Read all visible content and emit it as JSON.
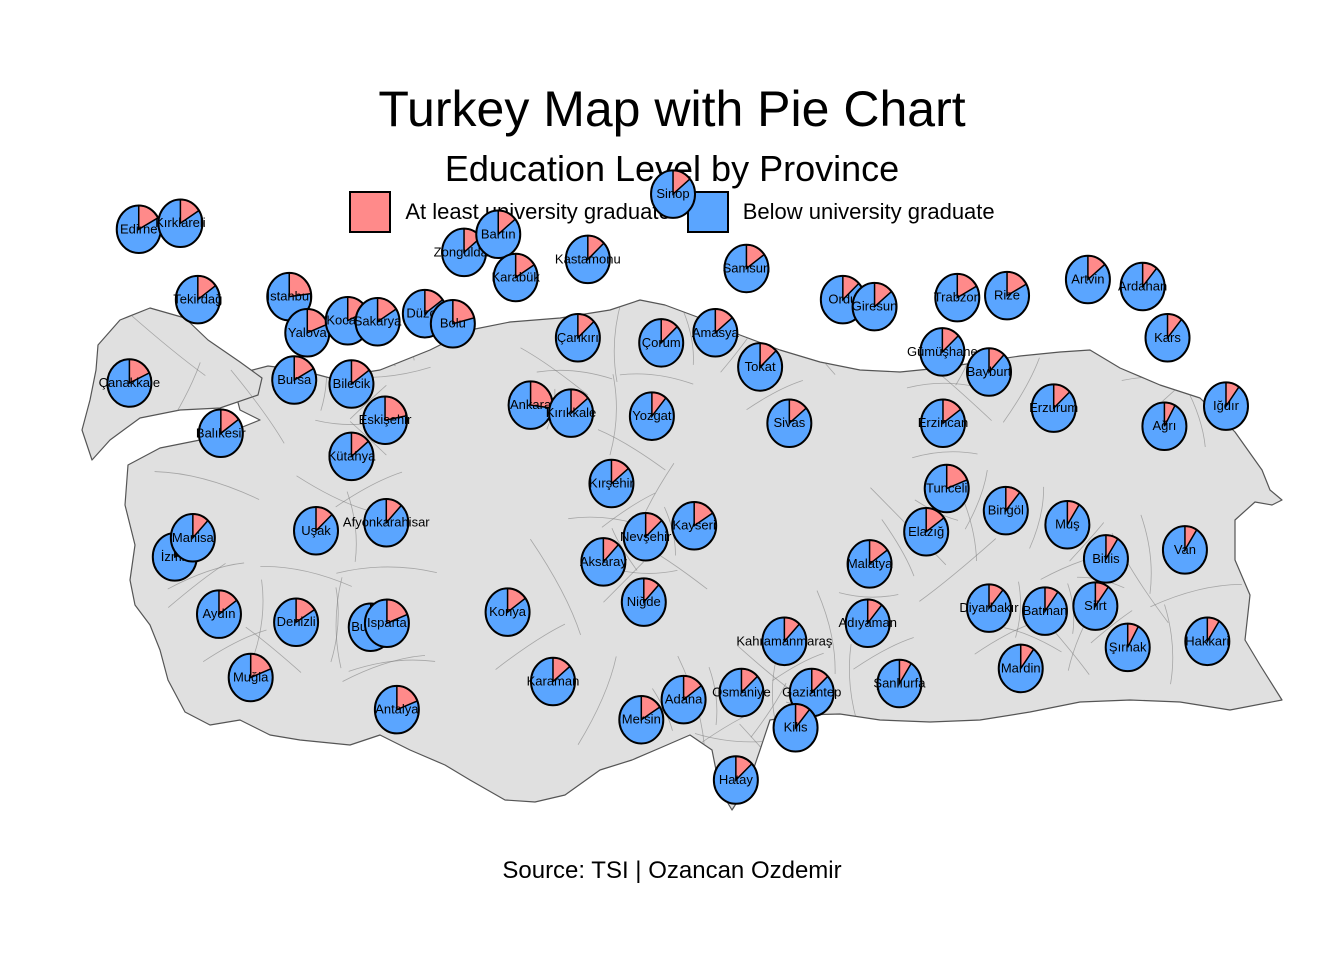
{
  "title": "Turkey Map with Pie Chart",
  "subtitle": "Education Level by Province",
  "caption": "Source: TSI | Ozancan Ozdemir",
  "colors": {
    "university": "#ff8a8a",
    "below": "#5aa5ff",
    "land": "#e0e0e0",
    "border": "#555555"
  },
  "legend": [
    {
      "label": "At least university graduate",
      "color": "#ff8a8a"
    },
    {
      "label": "Below university graduate",
      "color": "#5aa5ff"
    }
  ],
  "chart_data": {
    "type": "map-pie",
    "categories": [
      "At least university graduate",
      "Below university graduate"
    ],
    "provinces": [
      {
        "name": "Edirne",
        "lon": 26.56,
        "lat": 41.68,
        "university_share": 0.17
      },
      {
        "name": "Kırklareli",
        "lon": 27.23,
        "lat": 41.74,
        "university_share": 0.16
      },
      {
        "name": "Tekirdağ",
        "lon": 27.51,
        "lat": 40.98,
        "university_share": 0.15
      },
      {
        "name": "İstanbul",
        "lon": 28.98,
        "lat": 41.01,
        "university_share": 0.23
      },
      {
        "name": "Çanakkale",
        "lon": 26.41,
        "lat": 40.15,
        "university_share": 0.18
      },
      {
        "name": "Balıkesir",
        "lon": 27.88,
        "lat": 39.65,
        "university_share": 0.15
      },
      {
        "name": "Bursa",
        "lon": 29.06,
        "lat": 40.18,
        "university_share": 0.17
      },
      {
        "name": "Yalova",
        "lon": 29.27,
        "lat": 40.65,
        "university_share": 0.19
      },
      {
        "name": "Kocaeli",
        "lon": 29.92,
        "lat": 40.77,
        "university_share": 0.18
      },
      {
        "name": "Sakarya",
        "lon": 30.4,
        "lat": 40.76,
        "university_share": 0.16
      },
      {
        "name": "Düzce",
        "lon": 31.16,
        "lat": 40.84,
        "university_share": 0.15
      },
      {
        "name": "Bolu",
        "lon": 31.61,
        "lat": 40.74,
        "university_share": 0.21
      },
      {
        "name": "Zonguldak",
        "lon": 31.79,
        "lat": 41.45,
        "university_share": 0.14
      },
      {
        "name": "Bartın",
        "lon": 32.34,
        "lat": 41.63,
        "university_share": 0.14
      },
      {
        "name": "Karabük",
        "lon": 32.62,
        "lat": 41.2,
        "university_share": 0.16
      },
      {
        "name": "Kastamonu",
        "lon": 33.78,
        "lat": 41.38,
        "university_share": 0.13
      },
      {
        "name": "Sinop",
        "lon": 35.15,
        "lat": 42.03,
        "university_share": 0.14
      },
      {
        "name": "Çankırı",
        "lon": 33.62,
        "lat": 40.6,
        "university_share": 0.13
      },
      {
        "name": "Bilecik",
        "lon": 29.98,
        "lat": 40.14,
        "university_share": 0.15
      },
      {
        "name": "Eskişehir",
        "lon": 30.52,
        "lat": 39.78,
        "university_share": 0.22
      },
      {
        "name": "Kütahya",
        "lon": 29.98,
        "lat": 39.42,
        "university_share": 0.14
      },
      {
        "name": "Ankara",
        "lon": 32.86,
        "lat": 39.93,
        "university_share": 0.27
      },
      {
        "name": "Kırıkkale",
        "lon": 33.51,
        "lat": 39.85,
        "university_share": 0.14
      },
      {
        "name": "Çorum",
        "lon": 34.96,
        "lat": 40.55,
        "university_share": 0.13
      },
      {
        "name": "Yozgat",
        "lon": 34.81,
        "lat": 39.82,
        "university_share": 0.11
      },
      {
        "name": "Amasya",
        "lon": 35.83,
        "lat": 40.65,
        "university_share": 0.14
      },
      {
        "name": "Samsun",
        "lon": 36.33,
        "lat": 41.29,
        "university_share": 0.15
      },
      {
        "name": "Tokat",
        "lon": 36.55,
        "lat": 40.31,
        "university_share": 0.13
      },
      {
        "name": "Sivas",
        "lon": 37.02,
        "lat": 39.75,
        "university_share": 0.14
      },
      {
        "name": "Ordu",
        "lon": 37.88,
        "lat": 40.98,
        "university_share": 0.13
      },
      {
        "name": "Giresun",
        "lon": 38.39,
        "lat": 40.91,
        "university_share": 0.14
      },
      {
        "name": "Trabzon",
        "lon": 39.72,
        "lat": 41.0,
        "university_share": 0.17
      },
      {
        "name": "Rize",
        "lon": 40.52,
        "lat": 41.02,
        "university_share": 0.17
      },
      {
        "name": "Artvin",
        "lon": 41.82,
        "lat": 41.18,
        "university_share": 0.14
      },
      {
        "name": "Ardahan",
        "lon": 42.7,
        "lat": 41.11,
        "university_share": 0.11
      },
      {
        "name": "Gümüşhane",
        "lon": 39.48,
        "lat": 40.46,
        "university_share": 0.13
      },
      {
        "name": "Bayburt",
        "lon": 40.23,
        "lat": 40.26,
        "university_share": 0.12
      },
      {
        "name": "Erzincan",
        "lon": 39.49,
        "lat": 39.75,
        "university_share": 0.15
      },
      {
        "name": "Erzurum",
        "lon": 41.27,
        "lat": 39.9,
        "university_share": 0.13
      },
      {
        "name": "Kars",
        "lon": 43.1,
        "lat": 40.6,
        "university_share": 0.11
      },
      {
        "name": "Ağrı",
        "lon": 43.05,
        "lat": 39.72,
        "university_share": 0.08
      },
      {
        "name": "Iğdır",
        "lon": 44.04,
        "lat": 39.92,
        "university_share": 0.1
      },
      {
        "name": "İzmir",
        "lon": 27.14,
        "lat": 38.42,
        "university_share": 0.2
      },
      {
        "name": "Manisa",
        "lon": 27.43,
        "lat": 38.61,
        "university_share": 0.12
      },
      {
        "name": "Uşak",
        "lon": 29.41,
        "lat": 38.68,
        "university_share": 0.13
      },
      {
        "name": "Afyonkarahisar",
        "lon": 30.54,
        "lat": 38.76,
        "university_share": 0.12
      },
      {
        "name": "Aydın",
        "lon": 27.85,
        "lat": 37.85,
        "university_share": 0.15
      },
      {
        "name": "Denizli",
        "lon": 29.09,
        "lat": 37.77,
        "university_share": 0.16
      },
      {
        "name": "Muğla",
        "lon": 28.36,
        "lat": 37.22,
        "university_share": 0.19
      },
      {
        "name": "Burdur",
        "lon": 30.29,
        "lat": 37.72,
        "university_share": 0.15
      },
      {
        "name": "Isparta",
        "lon": 30.55,
        "lat": 37.76,
        "university_share": 0.19
      },
      {
        "name": "Antalya",
        "lon": 30.71,
        "lat": 36.9,
        "university_share": 0.19
      },
      {
        "name": "Konya",
        "lon": 32.49,
        "lat": 37.87,
        "university_share": 0.15
      },
      {
        "name": "Karaman",
        "lon": 33.22,
        "lat": 37.18,
        "university_share": 0.14
      },
      {
        "name": "Kırşehir",
        "lon": 34.16,
        "lat": 39.15,
        "university_share": 0.14
      },
      {
        "name": "Nevşehir",
        "lon": 34.71,
        "lat": 38.62,
        "university_share": 0.13
      },
      {
        "name": "Kayseri",
        "lon": 35.49,
        "lat": 38.73,
        "university_share": 0.16
      },
      {
        "name": "Aksaray",
        "lon": 34.03,
        "lat": 38.37,
        "university_share": 0.12
      },
      {
        "name": "Niğde",
        "lon": 34.68,
        "lat": 37.97,
        "university_share": 0.12
      },
      {
        "name": "Mersin",
        "lon": 34.64,
        "lat": 36.8,
        "university_share": 0.16
      },
      {
        "name": "Adana",
        "lon": 35.32,
        "lat": 37.0,
        "university_share": 0.15
      },
      {
        "name": "Osmaniye",
        "lon": 36.25,
        "lat": 37.07,
        "university_share": 0.13
      },
      {
        "name": "Hatay",
        "lon": 36.16,
        "lat": 36.2,
        "university_share": 0.13
      },
      {
        "name": "Kahramanmaraş",
        "lon": 36.94,
        "lat": 37.58,
        "university_share": 0.12
      },
      {
        "name": "Gaziantep",
        "lon": 37.38,
        "lat": 37.07,
        "university_share": 0.13
      },
      {
        "name": "Kilis",
        "lon": 37.12,
        "lat": 36.72,
        "university_share": 0.11
      },
      {
        "name": "Adıyaman",
        "lon": 38.28,
        "lat": 37.76,
        "university_share": 0.11
      },
      {
        "name": "Malatya",
        "lon": 38.31,
        "lat": 38.35,
        "university_share": 0.15
      },
      {
        "name": "Elazığ",
        "lon": 39.22,
        "lat": 38.67,
        "university_share": 0.15
      },
      {
        "name": "Tunceli",
        "lon": 39.55,
        "lat": 39.1,
        "university_share": 0.19
      },
      {
        "name": "Bingöl",
        "lon": 40.5,
        "lat": 38.88,
        "university_share": 0.11
      },
      {
        "name": "Muş",
        "lon": 41.49,
        "lat": 38.74,
        "university_share": 0.09
      },
      {
        "name": "Bitlis",
        "lon": 42.11,
        "lat": 38.4,
        "university_share": 0.09
      },
      {
        "name": "Van",
        "lon": 43.38,
        "lat": 38.49,
        "university_share": 0.09
      },
      {
        "name": "Şanlıurfa",
        "lon": 38.79,
        "lat": 37.16,
        "university_share": 0.09
      },
      {
        "name": "Diyarbakır",
        "lon": 40.23,
        "lat": 37.91,
        "university_share": 0.11
      },
      {
        "name": "Batman",
        "lon": 41.13,
        "lat": 37.88,
        "university_share": 0.1
      },
      {
        "name": "Siirt",
        "lon": 41.94,
        "lat": 37.93,
        "university_share": 0.1
      },
      {
        "name": "Mardin",
        "lon": 40.74,
        "lat": 37.31,
        "university_share": 0.1
      },
      {
        "name": "Şırnak",
        "lon": 42.46,
        "lat": 37.52,
        "university_share": 0.08
      },
      {
        "name": "Hakkari",
        "lon": 43.74,
        "lat": 37.58,
        "university_share": 0.09
      }
    ]
  }
}
